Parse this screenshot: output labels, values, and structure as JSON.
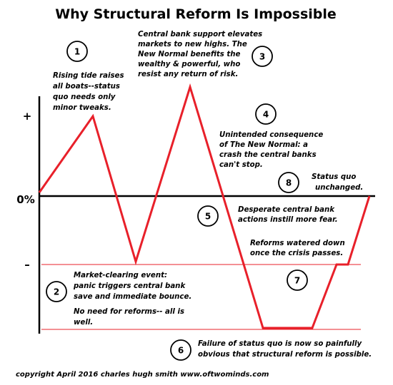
{
  "title": "Why Structural Reform Is Impossible",
  "axis": {
    "plus": "+",
    "zero": "0%",
    "minus": "–"
  },
  "annotations": [
    {
      "num": "1",
      "lines": [
        "Rising tide raises",
        "all boats--status",
        "quo needs only",
        "minor tweaks."
      ]
    },
    {
      "num": "2",
      "lines": [
        "Market-clearing event:",
        "panic triggers central bank",
        "save and immediate bounce.",
        "",
        "No need for reforms-- all is",
        "well."
      ]
    },
    {
      "num": "3",
      "lines": [
        "Central bank support elevates",
        "markets to new highs. The",
        "New Normal benefits the",
        "wealthy & powerful, who",
        "resist any return of risk."
      ]
    },
    {
      "num": "4",
      "lines": [
        "Unintended consequence",
        "of The New Normal: a",
        "crash the central banks",
        "can't stop."
      ]
    },
    {
      "num": "5",
      "lines": [
        "Desperate central bank",
        "actions instill more fear."
      ]
    },
    {
      "num": "6",
      "lines": [
        "Failure of status quo is now so painfully",
        "obvious that structural reform is possible."
      ]
    },
    {
      "num": "7",
      "lines": [
        "Reforms watered down",
        "once the crisis passes."
      ]
    },
    {
      "num": "8",
      "lines": [
        "Status quo",
        "unchanged."
      ]
    }
  ],
  "footer": "copyright April 2016 charles hugh smith   www.oftwominds.com",
  "colors": {
    "line": "#e8202a",
    "axis": "#000000",
    "background": "#ffffff"
  }
}
